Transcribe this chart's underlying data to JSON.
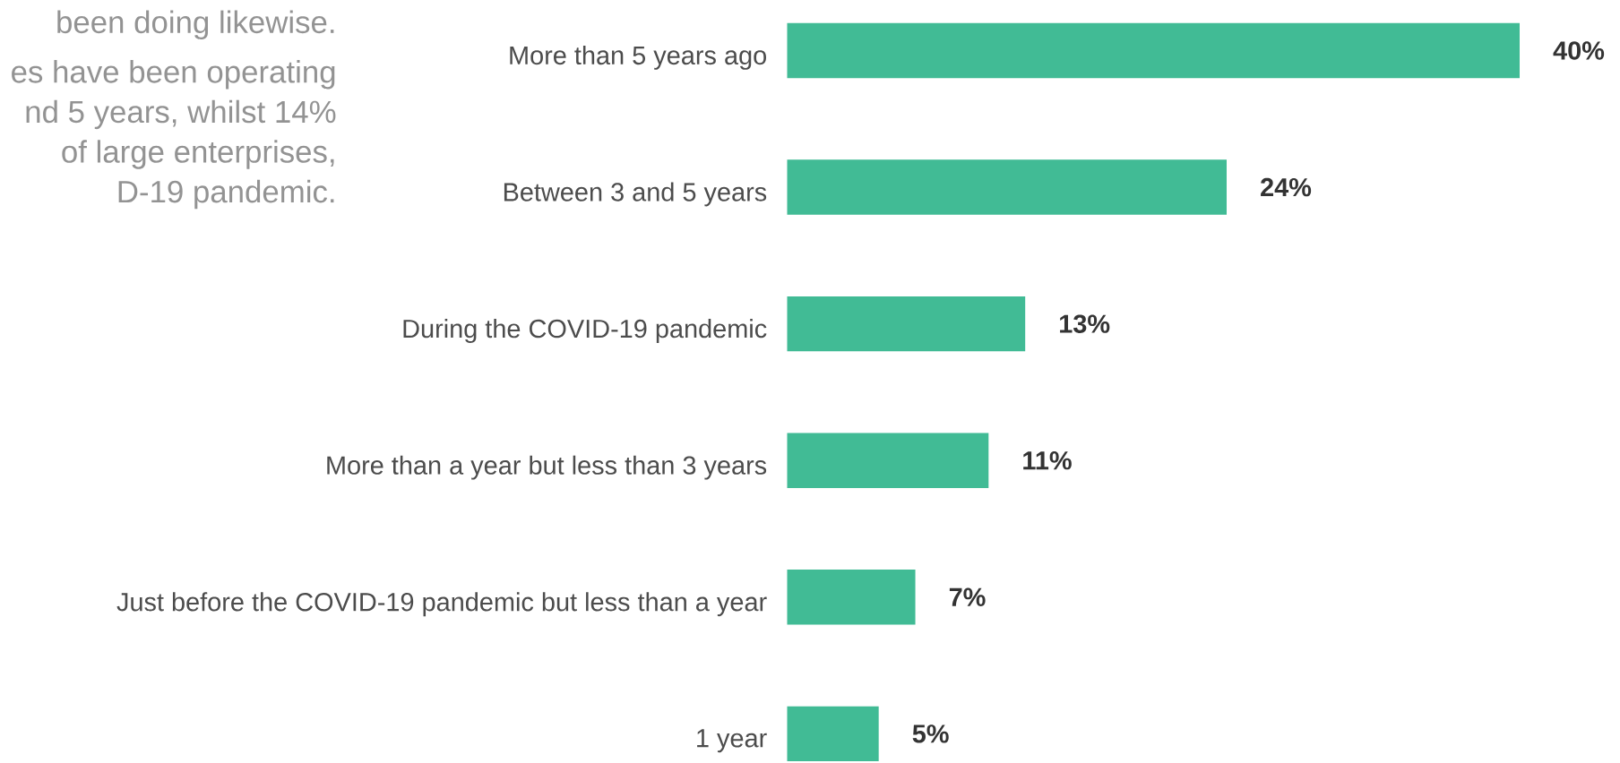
{
  "chart_data": {
    "type": "bar",
    "orientation": "horizontal",
    "categories": [
      "More than 5 years ago",
      "Between 3 and 5 years",
      "During the COVID-19 pandemic",
      "More than a year but less than 3 years",
      "Just before the COVID-19 pandemic but less than a year",
      "1 year"
    ],
    "values": [
      40,
      24,
      13,
      11,
      7,
      5
    ],
    "value_labels": [
      "40%",
      "24%",
      "13%",
      "11%",
      "7%",
      "5%"
    ],
    "color": "#41bb95",
    "annotations": [
      "been doing likewise.",
      "es have been operating",
      "nd 5 years, whilst 14%",
      "of large enterprises,",
      "D-19 pandemic."
    ]
  }
}
